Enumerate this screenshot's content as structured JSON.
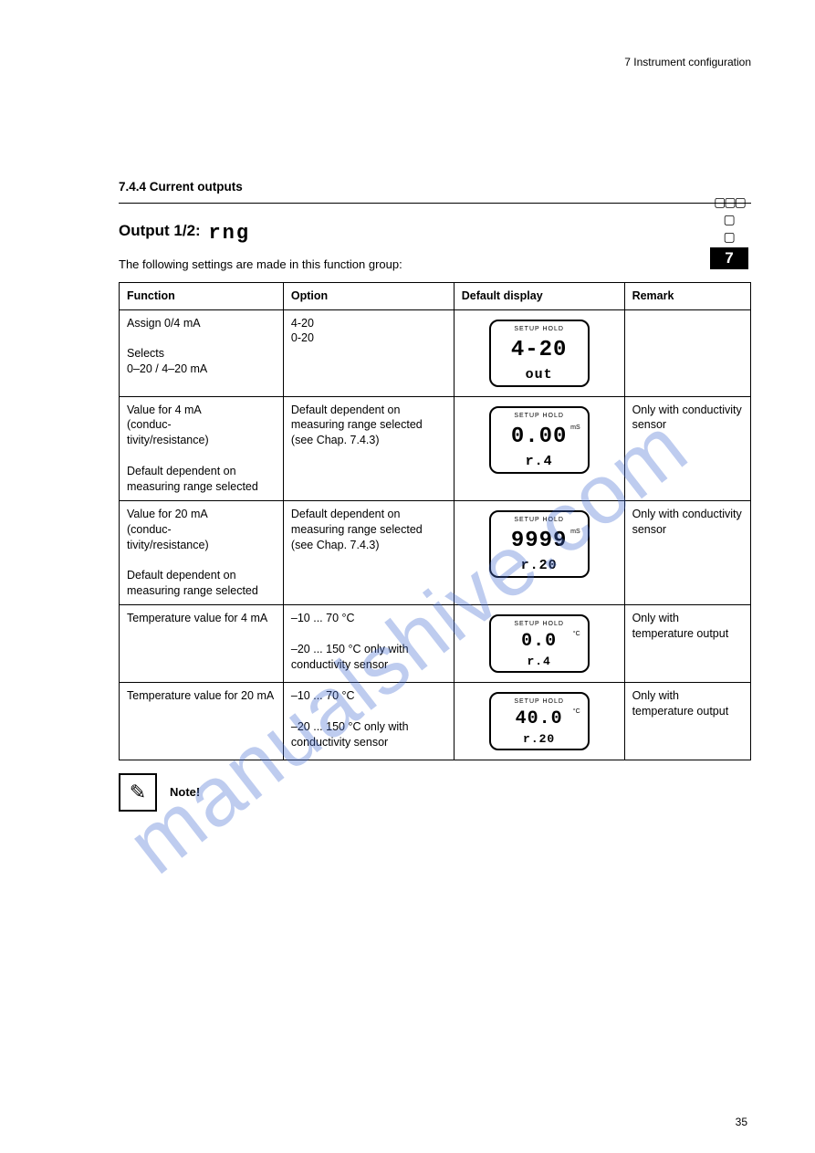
{
  "header": {
    "running": "7 Instrument configuration",
    "page_number": "35"
  },
  "side_tab": {
    "number": "7",
    "chart": "▯▯▯"
  },
  "section": {
    "head": "7.4.4 Current outputs",
    "title_prefix": "Output 1/2:",
    "code": "rng",
    "intro": "The following settings are made in this function group:"
  },
  "table": {
    "headers": {
      "function": "Function",
      "option": "Option",
      "default": "Default display",
      "remark": "Remark"
    },
    "rows": [
      {
        "function": "Assign 0/4 mA\n\nSelects\n0–20 / 4–20 mA",
        "option": "4-20\n0-20",
        "lcd": {
          "main": "4-20",
          "sub": "out",
          "unit": ""
        },
        "remark": ""
      },
      {
        "function": "Value for 4 mA\n(conduc-\ntivity/resistance)\n\nDefault dependent on measuring range selected",
        "option": "Default dependent on measuring range selected (see Chap. 7.4.3)",
        "lcd": {
          "main": "0.00",
          "sub": "r.4",
          "unit": "mS"
        },
        "remark": "Only with conductivity sensor"
      },
      {
        "function": "Value for 20 mA\n(conduc-\ntivity/resistance)\n\nDefault dependent on measuring range selected",
        "option": "Default dependent on measuring range selected (see Chap. 7.4.3)",
        "lcd": {
          "main": "9999",
          "sub": "r.20",
          "unit": "mS"
        },
        "remark": "Only with conductivity sensor"
      },
      {
        "function": "Temperature value for 4 mA",
        "option": "–10 ... 70 °C\n\n–20 ... 150 °C only with conductivity sensor",
        "lcd": {
          "main": "0.0",
          "sub": "r.4",
          "unit": "°C",
          "small": true
        },
        "remark": "Only with temperature output"
      },
      {
        "function": "Temperature value for 20 mA",
        "option": "–10 ... 70 °C\n\n–20 ... 150 °C only with conductivity sensor",
        "lcd": {
          "main": "40.0",
          "sub": "r.20",
          "unit": "°C",
          "small": true
        },
        "remark": "Only with temperature output"
      }
    ]
  },
  "note": {
    "label": "Note!",
    "icon": "✎"
  },
  "watermark": "manualshive.com"
}
